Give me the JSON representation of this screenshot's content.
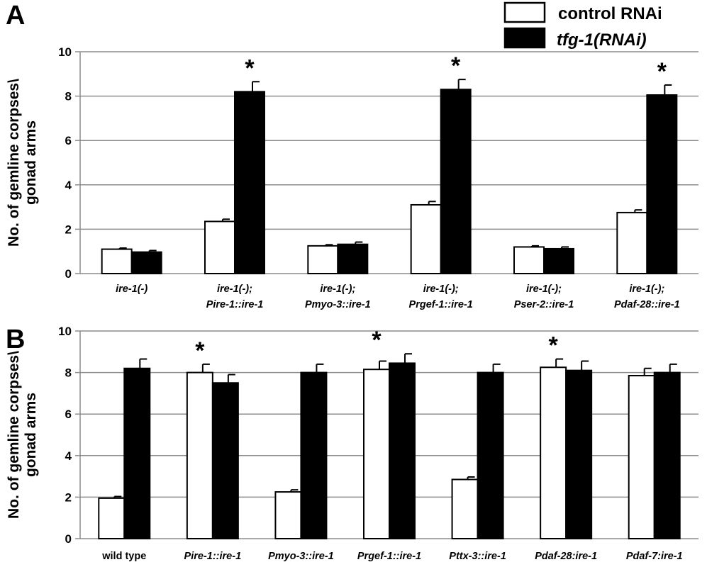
{
  "legend": [
    {
      "label": "control RNAi",
      "color": "#ffffff",
      "italic": false
    },
    {
      "label": "tfg-1(RNAi)",
      "color": "#000000",
      "italic": true
    }
  ],
  "chart_data": [
    {
      "type": "bar",
      "panel": "A",
      "ylabel": [
        "No. of gemline corpses\\",
        "gonad arms"
      ],
      "ylim": [
        0,
        10
      ],
      "yticks": [
        "0",
        "2",
        "4",
        "6",
        "8",
        "10"
      ],
      "grid": true,
      "categories": [
        [
          "ire-1(-)"
        ],
        [
          "ire-1(-);",
          "Pire-1::ire-1"
        ],
        [
          "ire-1(-);",
          "Pmyo-3::ire-1"
        ],
        [
          "ire-1(-);",
          "Prgef-1::ire-1"
        ],
        [
          "ire-1(-);",
          "Pser-2::ire-1"
        ],
        [
          "ire-1(-);",
          "Pdaf-28::ire-1"
        ]
      ],
      "series": [
        {
          "values": [
            1.1,
            2.35,
            1.25,
            3.1,
            1.2,
            2.75
          ],
          "errors": [
            0.05,
            0.1,
            0.05,
            0.15,
            0.05,
            0.12
          ]
        },
        {
          "values": [
            0.97,
            8.2,
            1.32,
            8.3,
            1.12,
            8.05
          ],
          "errors": [
            0.07,
            0.45,
            0.1,
            0.45,
            0.08,
            0.45
          ]
        }
      ],
      "significance": [
        "",
        "*",
        "",
        "*",
        "",
        "*"
      ]
    },
    {
      "type": "bar",
      "panel": "B",
      "ylabel": [
        "No. of gemline corpses\\",
        "gonad arms"
      ],
      "ylim": [
        0,
        10
      ],
      "yticks": [
        "0",
        "2",
        "4",
        "6",
        "8",
        "10"
      ],
      "grid": true,
      "categories": [
        [
          "wild type"
        ],
        [
          "Pire-1::ire-1"
        ],
        [
          "Pmyo-3::ire-1"
        ],
        [
          "Prgef-1::ire-1"
        ],
        [
          "Pttx-3::ire-1"
        ],
        [
          "Pdaf-28:ire-1"
        ],
        [
          "Pdaf-7:ire-1"
        ]
      ],
      "categories_italic": [
        false,
        true,
        true,
        true,
        true,
        true,
        true
      ],
      "series": [
        {
          "values": [
            1.95,
            8.0,
            2.25,
            8.15,
            2.85,
            8.25,
            7.85
          ],
          "errors": [
            0.08,
            0.4,
            0.1,
            0.4,
            0.12,
            0.4,
            0.35
          ]
        },
        {
          "values": [
            8.2,
            7.5,
            8.0,
            8.45,
            8.0,
            8.1,
            8.0
          ],
          "errors": [
            0.45,
            0.4,
            0.4,
            0.45,
            0.4,
            0.45,
            0.4
          ]
        }
      ],
      "significance": [
        "",
        "*",
        "",
        "*",
        "",
        "*",
        ""
      ]
    }
  ]
}
